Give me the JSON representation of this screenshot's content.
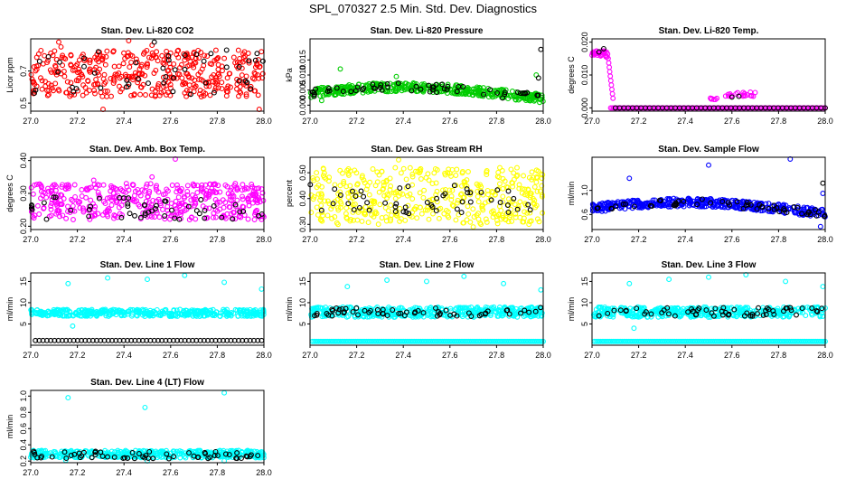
{
  "page": {
    "title": "SPL_070327  2.5 Min. Std. Dev. Diagnostics"
  },
  "colors": {
    "red": "#ff0000",
    "green": "#00cc00",
    "magenta": "#ff00ff",
    "yellow": "#ffff00",
    "blue": "#0000ff",
    "cyan": "#00ffff",
    "black": "#000000"
  },
  "chart_data": [
    {
      "type": "scatter",
      "title": "Stan. Dev. Li-820 CO2",
      "ylabel": "Licor ppm",
      "xlim": [
        27.0,
        28.0
      ],
      "ylim": [
        0.45,
        0.9
      ],
      "xticks": [
        "27.0",
        "27.2",
        "27.4",
        "27.6",
        "27.8",
        "28.0"
      ],
      "yticks": [
        "0.5",
        "0.7"
      ],
      "ytick_values": [
        0.5,
        0.7
      ],
      "series": [
        {
          "name": "main",
          "color": "red",
          "pattern": "band",
          "n": 420,
          "lo": 0.54,
          "hi": 0.83,
          "extras": [
            [
              27.12,
              0.88
            ],
            [
              27.13,
              0.85
            ],
            [
              27.31,
              0.45
            ],
            [
              27.42,
              0.89
            ],
            [
              27.52,
              0.86
            ],
            [
              27.98,
              0.46
            ]
          ]
        },
        {
          "name": "reference",
          "color": "black",
          "pattern": "band",
          "n": 45,
          "lo": 0.55,
          "hi": 0.82,
          "extras": [
            [
              27.29,
              0.82
            ],
            [
              27.53,
              0.88
            ],
            [
              27.84,
              0.83
            ]
          ]
        }
      ]
    },
    {
      "type": "scatter",
      "title": "Stan. Dev. Li-820 Pressure",
      "ylabel": "kPa",
      "xlim": [
        27.0,
        28.0
      ],
      "ylim": [
        -0.002,
        0.022
      ],
      "xticks": [
        "27.0",
        "27.2",
        "27.4",
        "27.6",
        "27.8",
        "28.0"
      ],
      "yticks": [
        "0.000",
        "0.005",
        "0.010",
        "0.015"
      ],
      "ytick_values": [
        0.0,
        0.005,
        0.01,
        0.015
      ],
      "series": [
        {
          "name": "main",
          "color": "green",
          "pattern": "wave",
          "n": 420,
          "base": 0.0035,
          "amp": 0.0025,
          "spread": 0.003,
          "extras": [
            [
              27.05,
              0.0015
            ],
            [
              27.13,
              0.012
            ],
            [
              27.37,
              0.0095
            ],
            [
              27.97,
              0.01
            ]
          ]
        },
        {
          "name": "reference",
          "color": "black",
          "pattern": "wave",
          "n": 55,
          "base": 0.0035,
          "amp": 0.0025,
          "spread": 0.003,
          "extras": [
            [
              27.99,
              0.0185
            ],
            [
              27.98,
              0.009
            ]
          ]
        }
      ]
    },
    {
      "type": "scatter",
      "title": "Stan. Dev. Li-820 Temp.",
      "ylabel": "degrees C",
      "xlim": [
        27.0,
        28.0
      ],
      "ylim": [
        -0.001,
        0.021
      ],
      "xticks": [
        "27.0",
        "27.2",
        "27.4",
        "27.6",
        "27.8",
        "28.0"
      ],
      "yticks": [
        "0.000",
        "0.010",
        "0.020"
      ],
      "ytick_values": [
        0.0,
        0.01,
        0.02
      ],
      "series": [
        {
          "name": "spike",
          "color": "magenta",
          "pattern": "spike",
          "n": 40
        },
        {
          "name": "flat",
          "color": "magenta",
          "pattern": "flat",
          "n": 150,
          "from": 27.08,
          "to": 28.0,
          "val": 0.0
        },
        {
          "name": "bump",
          "color": "magenta",
          "pattern": "cluster",
          "n": 20,
          "from": 27.56,
          "to": 27.7,
          "lo": 0.0035,
          "hi": 0.0048
        },
        {
          "name": "bump2",
          "color": "magenta",
          "pattern": "cluster",
          "n": 6,
          "from": 27.48,
          "to": 27.55,
          "lo": 0.0025,
          "hi": 0.003
        },
        {
          "name": "reference",
          "color": "black",
          "pattern": "flat",
          "n": 50,
          "from": 27.1,
          "to": 28.0,
          "val": 0.0,
          "extras": [
            [
              27.03,
              0.017
            ],
            [
              27.05,
              0.018
            ],
            [
              27.6,
              0.0033
            ],
            [
              27.63,
              0.0035
            ]
          ]
        }
      ]
    },
    {
      "type": "scatter",
      "title": "Stan. Dev. Amb. Box Temp.",
      "ylabel": "degrees C",
      "xlim": [
        27.0,
        28.0
      ],
      "ylim": [
        0.19,
        0.41
      ],
      "xticks": [
        "27.0",
        "27.2",
        "27.4",
        "27.6",
        "27.8",
        "28.0"
      ],
      "yticks": [
        "0.20",
        "0.30",
        "0.40"
      ],
      "ytick_values": [
        0.2,
        0.3,
        0.4
      ],
      "series": [
        {
          "name": "main",
          "color": "magenta",
          "pattern": "band",
          "n": 420,
          "lo": 0.22,
          "hi": 0.33,
          "extras": [
            [
              27.62,
              0.405
            ],
            [
              27.27,
              0.34
            ],
            [
              27.52,
              0.35
            ],
            [
              27.41,
              0.33
            ]
          ]
        },
        {
          "name": "reference",
          "color": "black",
          "pattern": "band",
          "n": 50,
          "lo": 0.22,
          "hi": 0.29
        }
      ]
    },
    {
      "type": "scatter",
      "title": "Stan. Dev. Gas Stream RH",
      "ylabel": "percent",
      "xlim": [
        27.0,
        28.0
      ],
      "ylim": [
        0.28,
        0.56
      ],
      "xticks": [
        "27.0",
        "27.2",
        "27.4",
        "27.6",
        "27.8",
        "28.0"
      ],
      "yticks": [
        "0.30",
        "0.40",
        "0.50"
      ],
      "ytick_values": [
        0.3,
        0.4,
        0.5
      ],
      "series": [
        {
          "name": "main",
          "color": "yellow",
          "pattern": "band",
          "n": 420,
          "lo": 0.3,
          "hi": 0.52,
          "extras": [
            [
              27.38,
              0.55
            ],
            [
              27.12,
              0.3
            ],
            [
              27.7,
              0.29
            ]
          ]
        },
        {
          "name": "reference",
          "color": "black",
          "pattern": "band",
          "n": 50,
          "lo": 0.34,
          "hi": 0.46
        }
      ]
    },
    {
      "type": "scatter",
      "title": "Stan. Dev. Sample Flow",
      "ylabel": "ml/min",
      "xlim": [
        27.0,
        28.0
      ],
      "ylim": [
        0.35,
        1.55
      ],
      "xticks": [
        "27.0",
        "27.2",
        "27.4",
        "27.6",
        "27.8",
        "28.0"
      ],
      "yticks": [
        "0.6",
        "1.0"
      ],
      "ytick_values": [
        0.6,
        1.0
      ],
      "series": [
        {
          "name": "main",
          "color": "blue",
          "pattern": "wave",
          "n": 420,
          "base": 0.68,
          "amp": 0.12,
          "spread": 0.14,
          "extras": [
            [
              27.16,
              1.2
            ],
            [
              27.5,
              1.42
            ],
            [
              27.85,
              1.53
            ],
            [
              27.98,
              0.4
            ],
            [
              27.99,
              0.95
            ]
          ]
        },
        {
          "name": "reference",
          "color": "black",
          "pattern": "wave",
          "n": 55,
          "base": 0.68,
          "amp": 0.12,
          "spread": 0.12,
          "extras": [
            [
              27.99,
              1.12
            ]
          ]
        }
      ]
    },
    {
      "type": "scatter",
      "title": "Stan. Dev. Line 1 Flow",
      "ylabel": "ml/min",
      "xlim": [
        27.0,
        28.0
      ],
      "ylim": [
        0,
        17
      ],
      "xticks": [
        "27.0",
        "27.2",
        "27.4",
        "27.6",
        "27.8",
        "28.0"
      ],
      "yticks": [
        "5",
        "10",
        "15"
      ],
      "ytick_values": [
        5,
        10,
        15
      ],
      "series": [
        {
          "name": "main",
          "color": "cyan",
          "pattern": "band",
          "n": 420,
          "lo": 6.8,
          "hi": 8.4,
          "extras": [
            [
              27.16,
              14.5
            ],
            [
              27.33,
              15.8
            ],
            [
              27.5,
              15.5
            ],
            [
              27.66,
              16.4
            ],
            [
              27.83,
              14.8
            ],
            [
              27.99,
              13.2
            ],
            [
              27.18,
              4.5
            ]
          ]
        },
        {
          "name": "reference",
          "color": "black",
          "pattern": "flat",
          "n": 60,
          "from": 27.02,
          "to": 27.99,
          "val": 1.1
        }
      ]
    },
    {
      "type": "scatter",
      "title": "Stan. Dev. Line 2 Flow",
      "ylabel": "ml/min",
      "xlim": [
        27.0,
        28.0
      ],
      "ylim": [
        0,
        17
      ],
      "xticks": [
        "27.0",
        "27.2",
        "27.4",
        "27.6",
        "27.8",
        "28.0"
      ],
      "yticks": [
        "5",
        "10",
        "15"
      ],
      "ytick_values": [
        5,
        10,
        15
      ],
      "series": [
        {
          "name": "main",
          "color": "cyan",
          "pattern": "band",
          "n": 420,
          "lo": 6.6,
          "hi": 9.0,
          "extras": [
            [
              27.16,
              13.8
            ],
            [
              27.33,
              15.3
            ],
            [
              27.5,
              15.0
            ],
            [
              27.66,
              16.2
            ],
            [
              27.83,
              14.5
            ],
            [
              27.99,
              13.0
            ]
          ]
        },
        {
          "name": "baseline",
          "color": "cyan",
          "pattern": "flat",
          "n": 150,
          "from": 27.01,
          "to": 28.0,
          "val": 0.9
        },
        {
          "name": "reference",
          "color": "black",
          "pattern": "band",
          "n": 60,
          "lo": 6.8,
          "hi": 8.9
        }
      ]
    },
    {
      "type": "scatter",
      "title": "Stan. Dev. Line 3 Flow",
      "ylabel": "ml/min",
      "xlim": [
        27.0,
        28.0
      ],
      "ylim": [
        0,
        17
      ],
      "xticks": [
        "27.0",
        "27.2",
        "27.4",
        "27.6",
        "27.8",
        "28.0"
      ],
      "yticks": [
        "5",
        "10",
        "15"
      ],
      "ytick_values": [
        5,
        10,
        15
      ],
      "series": [
        {
          "name": "main",
          "color": "cyan",
          "pattern": "band",
          "n": 420,
          "lo": 6.6,
          "hi": 9.0,
          "extras": [
            [
              27.16,
              14.5
            ],
            [
              27.33,
              15.5
            ],
            [
              27.5,
              16.0
            ],
            [
              27.66,
              16.6
            ],
            [
              27.83,
              15.0
            ],
            [
              27.99,
              13.8
            ],
            [
              27.18,
              4.0
            ]
          ]
        },
        {
          "name": "baseline",
          "color": "cyan",
          "pattern": "flat",
          "n": 150,
          "from": 27.01,
          "to": 28.0,
          "val": 0.9
        },
        {
          "name": "reference",
          "color": "black",
          "pattern": "band",
          "n": 60,
          "lo": 6.8,
          "hi": 8.8
        }
      ]
    },
    {
      "type": "scatter",
      "title": "Stan. Dev. Line 4 (LT) Flow",
      "ylabel": "ml/min",
      "xlim": [
        27.0,
        28.0
      ],
      "ylim": [
        0.18,
        1.07
      ],
      "xticks": [
        "27.0",
        "27.2",
        "27.4",
        "27.6",
        "27.8",
        "28.0"
      ],
      "yticks": [
        "0.2",
        "0.4",
        "0.6",
        "0.8",
        "1.0"
      ],
      "ytick_values": [
        0.2,
        0.4,
        0.6,
        0.8,
        1.0
      ],
      "series": [
        {
          "name": "main",
          "color": "cyan",
          "pattern": "band",
          "n": 420,
          "lo": 0.24,
          "hi": 0.33,
          "extras": [
            [
              27.16,
              0.98
            ],
            [
              27.49,
              0.86
            ],
            [
              27.83,
              1.04
            ],
            [
              27.15,
              0.21
            ],
            [
              27.5,
              0.2
            ],
            [
              27.83,
              0.2
            ]
          ]
        },
        {
          "name": "reference",
          "color": "black",
          "pattern": "band",
          "n": 60,
          "lo": 0.23,
          "hi": 0.32
        }
      ]
    }
  ]
}
